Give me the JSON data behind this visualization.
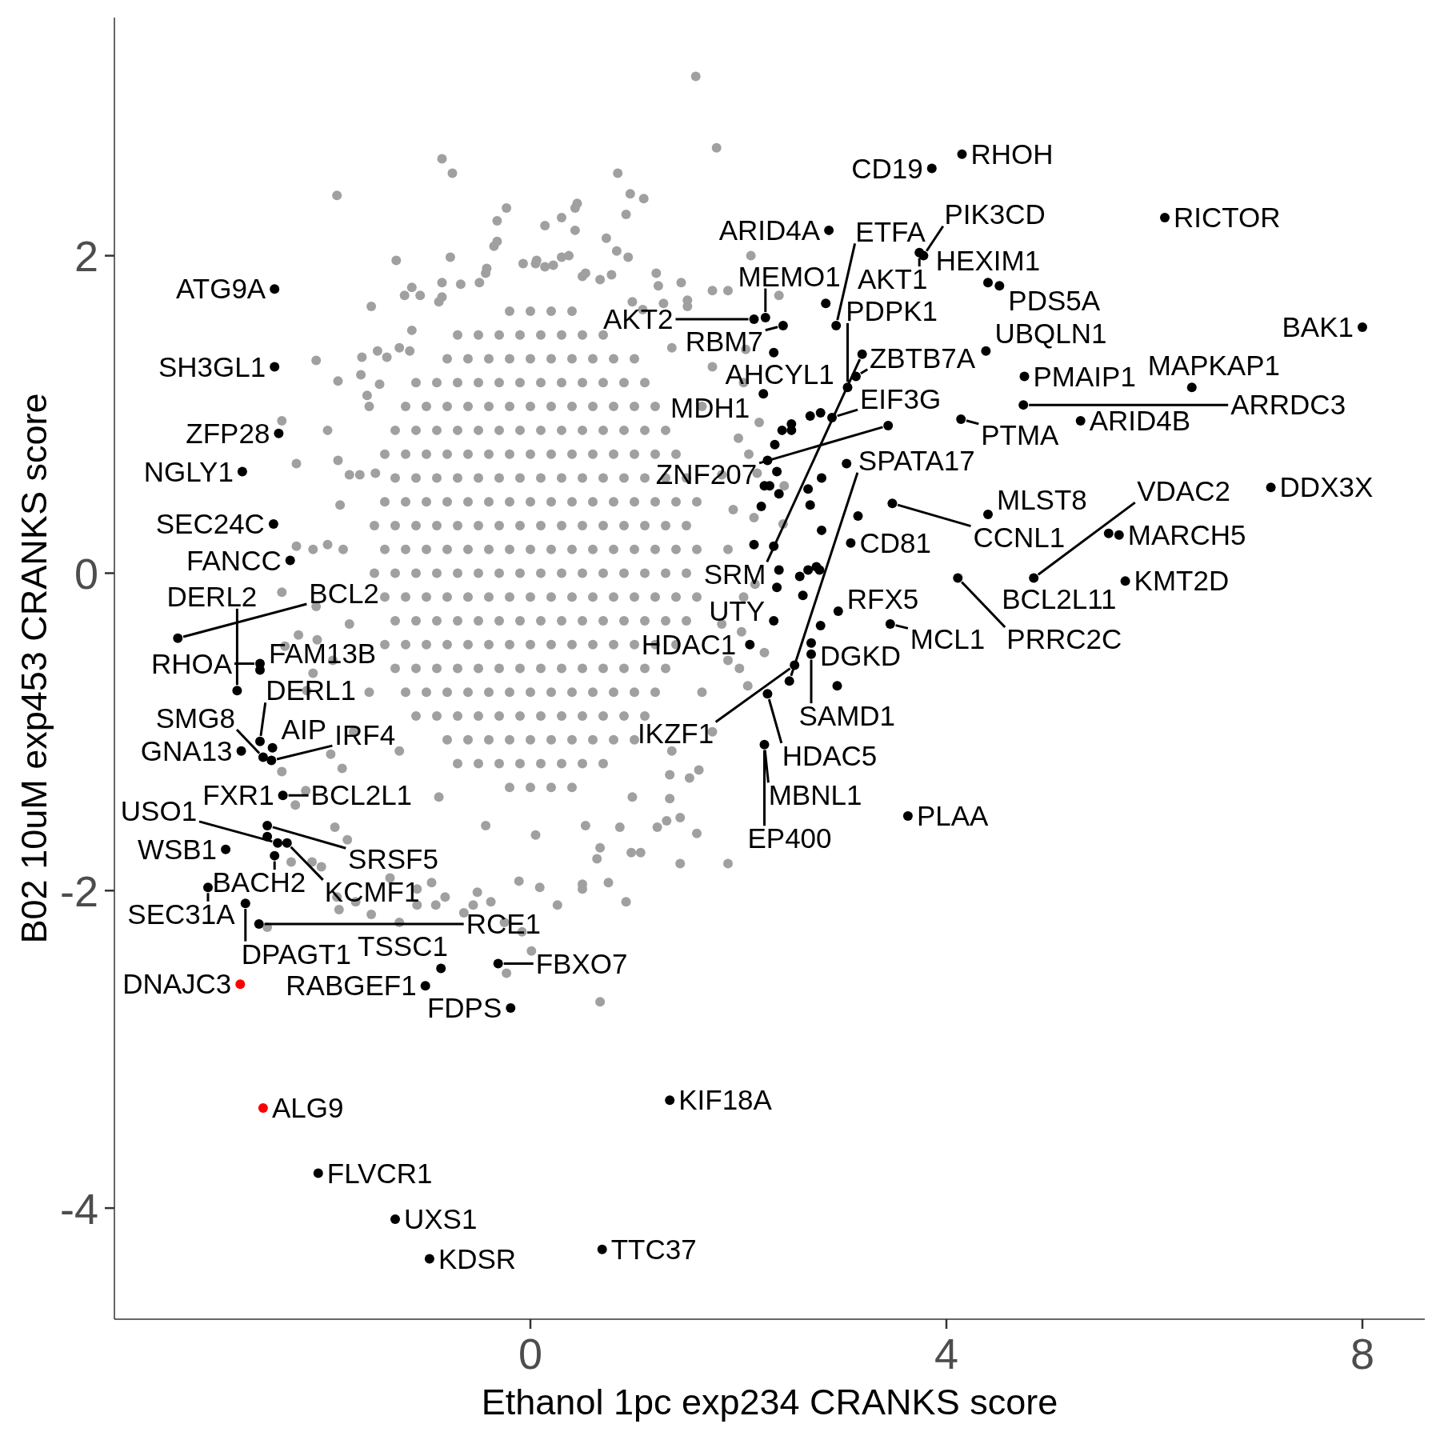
{
  "chart_data": {
    "type": "scatter",
    "xlabel": "Ethanol 1pc exp234 CRANKS score",
    "ylabel": "B02 10uM exp453 CRANKS score",
    "xlim": [
      -4,
      8.6
    ],
    "ylim": [
      -4.7,
      3.5
    ],
    "xticks": [
      0,
      4,
      8
    ],
    "yticks": [
      -4,
      -2,
      0,
      2
    ],
    "marker": "circle",
    "series": [
      {
        "color": "#a0a0a0",
        "x": [
          -0.2,
          0,
          0.2,
          0.4,
          -0.7,
          -0.5,
          -0.3,
          -0.1,
          0.1,
          0.3,
          0.5,
          0.7,
          -0.8,
          -0.6,
          -0.4,
          -0.2,
          0,
          0.2,
          0.4,
          0.6,
          0.8,
          1,
          -1.1,
          -0.9,
          -0.7,
          -0.5,
          -0.3,
          -0.1,
          0.1,
          0.3,
          0.5,
          0.7,
          0.9,
          1.1,
          -1.2,
          -1,
          -0.8,
          -0.6,
          -0.4,
          -0.2,
          0,
          0.2,
          0.4,
          0.6,
          0.8,
          1,
          1.2,
          -1.3,
          -1.1,
          -0.9,
          -0.7,
          -0.5,
          -0.3,
          -0.1,
          0.1,
          0.3,
          0.5,
          0.7,
          0.9,
          1.1,
          1.3,
          -1.4,
          -1.2,
          -1,
          -0.8,
          -0.6,
          -0.4,
          -0.2,
          0,
          0.2,
          0.4,
          0.6,
          0.8,
          1,
          1.2,
          1.4,
          -1.3,
          -1.1,
          -0.9,
          -0.7,
          -0.5,
          -0.3,
          -0.1,
          0.1,
          0.3,
          0.5,
          0.7,
          0.9,
          1.1,
          1.3,
          1.5,
          -1.4,
          -1.2,
          -1,
          -0.8,
          -0.6,
          -0.4,
          -0.2,
          0,
          0.2,
          0.4,
          0.6,
          0.8,
          1,
          1.2,
          1.4,
          1.6,
          -1.5,
          -1.3,
          -1.1,
          -0.9,
          -0.7,
          -0.5,
          -0.3,
          -0.1,
          0.1,
          0.3,
          0.5,
          0.7,
          0.9,
          1.1,
          1.3,
          1.5,
          -1.4,
          -1.2,
          -1,
          -0.8,
          -0.6,
          -0.4,
          -0.2,
          0,
          0.2,
          0.4,
          0.6,
          0.8,
          1,
          1.2,
          1.4,
          1.6,
          -1.5,
          -1.3,
          -1.1,
          -0.9,
          -0.7,
          -0.5,
          -0.3,
          -0.1,
          0.1,
          0.3,
          0.5,
          0.7,
          0.9,
          1.1,
          1.3,
          1.5,
          -1.4,
          -1.2,
          -1,
          -0.8,
          -0.6,
          -0.4,
          -0.2,
          0,
          0.2,
          0.4,
          0.6,
          0.8,
          1,
          1.2,
          1.4,
          1.6,
          -1.3,
          -1.1,
          -0.9,
          -0.7,
          -0.5,
          -0.3,
          -0.1,
          0.1,
          0.3,
          0.5,
          0.7,
          0.9,
          1.1,
          1.3,
          1.5,
          -1.4,
          -1.2,
          -1,
          -0.8,
          -0.6,
          -0.4,
          -0.2,
          0,
          0.2,
          0.4,
          0.6,
          0.8,
          1,
          1.2,
          1.4,
          -1.3,
          -1.1,
          -0.9,
          -0.7,
          -0.5,
          -0.3,
          -0.1,
          0.1,
          0.3,
          0.5,
          0.7,
          0.9,
          1.1,
          1.3,
          -1.2,
          -1,
          -0.8,
          -0.6,
          -0.4,
          -0.2,
          0,
          0.2,
          0.4,
          0.6,
          0.8,
          1,
          1.2,
          -1.1,
          -0.9,
          -0.7,
          -0.5,
          -0.3,
          -0.1,
          0.1,
          0.3,
          0.5,
          0.7,
          0.9,
          1.1,
          -0.8,
          -0.6,
          -0.4,
          -0.2,
          0,
          0.2,
          0.4,
          0.6,
          0.8,
          1,
          -0.7,
          -0.5,
          -0.3,
          -0.1,
          0.1,
          0.3,
          0.5,
          0.7,
          -0.2,
          0,
          0.2,
          0.4,
          1.59,
          1.79,
          -0.85,
          -0.75,
          -1.86,
          0.84,
          0.96,
          1.09,
          0.92,
          0.73,
          0.83,
          0.94,
          -0.23,
          -0.32,
          0.45,
          0.43,
          0.3,
          0.14,
          0.43,
          -0.32,
          -0.35,
          -0.77,
          -1.29,
          -0.42,
          -0.07,
          0.06,
          0.14,
          0.22,
          0.3,
          0.37,
          1.21,
          1.23,
          1.45,
          1.75,
          1.9,
          2.12,
          2.39,
          0.67,
          0.78,
          0.5,
          -0.67,
          -0.49,
          -0.85,
          -0.85,
          -1.14,
          -1.21,
          -1.06,
          -1.53,
          -2.06,
          -1.85,
          -1.62,
          -1.63,
          -2.25,
          -1.85,
          -1.14,
          -1.47,
          -1.38,
          -1.16,
          1.28,
          1.51,
          1.51,
          1.08,
          2.07,
          2.18,
          2.44,
          -1.45,
          -1.57,
          -2.39,
          -1.64,
          -1.49,
          -1.83,
          -2.25,
          -2.09,
          -1.95,
          -2.39,
          -2.06,
          -2.36,
          -2.23,
          -2.05,
          -2.09,
          -2.15,
          -2.39,
          -2.16,
          -1.92,
          -1.81,
          -2.26,
          -1.88,
          -1.76,
          -2.3,
          -2.1,
          -2.01,
          -1.86,
          -1.68,
          -1.84,
          -2.53,
          -1.53,
          -1.26,
          -1.09,
          -0.91,
          -0.64,
          -0.55,
          -0.25,
          -0.08,
          0.01,
          -0.23,
          0.67,
          0.26,
          0.5,
          0.75,
          0.92,
          1.44,
          1.9,
          1.6,
          1.06,
          0.86,
          1.22,
          0.09,
          -0.11,
          -0.51,
          -0.38,
          -0.82,
          -0.95,
          -1.35,
          -1.09,
          0.5,
          1.31,
          1.44,
          0.97,
          1.75,
          2.03,
          2.43,
          2.25,
          2.01,
          2.09,
          1.53,
          1.34,
          0.64,
          0.67,
          1.62,
          1.34,
          2.16,
          1.9,
          1.84,
          1.65,
          1.36,
          0.98,
          0.53,
          0.05,
          -0.43,
          -0.88,
          -1.26,
          -1.55,
          -1.74,
          -1.8,
          -1.74,
          -1.55,
          -1.26,
          -0.88,
          -0.43,
          0.05,
          0.53,
          0.98,
          1.36,
          1.65,
          1.84,
          2,
          1.95,
          2.05,
          1.9,
          1.75,
          -1.95,
          -1.9,
          -1.7,
          2.2,
          2.1,
          2.15,
          2.05
        ],
        "values": [
          1.65,
          1.65,
          1.65,
          1.65,
          1.5,
          1.5,
          1.5,
          1.5,
          1.5,
          1.5,
          1.5,
          1.5,
          1.35,
          1.35,
          1.35,
          1.35,
          1.35,
          1.35,
          1.35,
          1.35,
          1.35,
          1.35,
          1.2,
          1.2,
          1.2,
          1.2,
          1.2,
          1.2,
          1.2,
          1.2,
          1.2,
          1.2,
          1.2,
          1.2,
          1.05,
          1.05,
          1.05,
          1.05,
          1.05,
          1.05,
          1.05,
          1.05,
          1.05,
          1.05,
          1.05,
          1.05,
          1.05,
          0.9,
          0.9,
          0.9,
          0.9,
          0.9,
          0.9,
          0.9,
          0.9,
          0.9,
          0.9,
          0.9,
          0.9,
          0.9,
          0.9,
          0.75,
          0.75,
          0.75,
          0.75,
          0.75,
          0.75,
          0.75,
          0.75,
          0.75,
          0.75,
          0.75,
          0.75,
          0.75,
          0.75,
          0.75,
          0.6,
          0.6,
          0.6,
          0.6,
          0.6,
          0.6,
          0.6,
          0.6,
          0.6,
          0.6,
          0.6,
          0.6,
          0.6,
          0.6,
          0.6,
          0.45,
          0.45,
          0.45,
          0.45,
          0.45,
          0.45,
          0.45,
          0.45,
          0.45,
          0.45,
          0.45,
          0.45,
          0.45,
          0.45,
          0.45,
          0.45,
          0.3,
          0.3,
          0.3,
          0.3,
          0.3,
          0.3,
          0.3,
          0.3,
          0.3,
          0.3,
          0.3,
          0.3,
          0.3,
          0.3,
          0.3,
          0.3,
          0.15,
          0.15,
          0.15,
          0.15,
          0.15,
          0.15,
          0.15,
          0.15,
          0.15,
          0.15,
          0.15,
          0.15,
          0.15,
          0.15,
          0.15,
          0.15,
          0,
          0,
          0,
          0,
          0,
          0,
          0,
          0,
          0,
          0,
          0,
          0,
          0,
          0,
          0,
          0,
          -0.15,
          -0.15,
          -0.15,
          -0.15,
          -0.15,
          -0.15,
          -0.15,
          -0.15,
          -0.15,
          -0.15,
          -0.15,
          -0.15,
          -0.15,
          -0.15,
          -0.15,
          -0.15,
          -0.3,
          -0.3,
          -0.3,
          -0.3,
          -0.3,
          -0.3,
          -0.3,
          -0.3,
          -0.3,
          -0.3,
          -0.3,
          -0.3,
          -0.3,
          -0.3,
          -0.3,
          -0.45,
          -0.45,
          -0.45,
          -0.45,
          -0.45,
          -0.45,
          -0.45,
          -0.45,
          -0.45,
          -0.45,
          -0.45,
          -0.45,
          -0.45,
          -0.45,
          -0.45,
          -0.6,
          -0.6,
          -0.6,
          -0.6,
          -0.6,
          -0.6,
          -0.6,
          -0.6,
          -0.6,
          -0.6,
          -0.6,
          -0.6,
          -0.6,
          -0.6,
          -0.75,
          -0.75,
          -0.75,
          -0.75,
          -0.75,
          -0.75,
          -0.75,
          -0.75,
          -0.75,
          -0.75,
          -0.75,
          -0.75,
          -0.75,
          -0.9,
          -0.9,
          -0.9,
          -0.9,
          -0.9,
          -0.9,
          -0.9,
          -0.9,
          -0.9,
          -0.9,
          -0.9,
          -0.9,
          -1.05,
          -1.05,
          -1.05,
          -1.05,
          -1.05,
          -1.05,
          -1.05,
          -1.05,
          -1.05,
          -1.05,
          -1.2,
          -1.2,
          -1.2,
          -1.2,
          -1.2,
          -1.2,
          -1.2,
          -1.2,
          -1.35,
          -1.35,
          -1.35,
          -1.35,
          3.13,
          2.68,
          2.61,
          2.52,
          2.38,
          2.52,
          2.39,
          2.36,
          2.26,
          2.11,
          2.03,
          1.99,
          2.3,
          2.22,
          2.33,
          2.3,
          2.24,
          2.19,
          2.16,
          2.09,
          2.06,
          1.99,
          1.97,
          1.92,
          1.95,
          1.97,
          1.93,
          1.94,
          1.99,
          2,
          1.89,
          1.81,
          1.83,
          1.78,
          1.78,
          2,
          1.75,
          1.85,
          1.88,
          1.87,
          1.82,
          1.83,
          1.83,
          1.74,
          1.8,
          1.75,
          1.75,
          1.68,
          1.34,
          1.21,
          1.36,
          1.25,
          0.69,
          0.71,
          1.53,
          1.4,
          1.36,
          1.4,
          1.7,
          1.72,
          1.68,
          1.66,
          1.41,
          0.63,
          0.55,
          1.19,
          1.12,
          0.96,
          0.62,
          0.63,
          0.43,
          0.17,
          0.15,
          0.18,
          -0.12,
          -0.21,
          -0.46,
          -0.39,
          -0.42,
          -0.63,
          -0.74,
          -1.25,
          -1.37,
          -1.14,
          -1.23,
          -1.46,
          -1.6,
          -1.68,
          -1.82,
          -1.82,
          -1.85,
          -2.04,
          -2.07,
          -2.12,
          -2.23,
          -2.15,
          -2.2,
          -2.09,
          -2.09,
          -2.14,
          -2.09,
          -2.2,
          -2.26,
          -2.38,
          -2.52,
          -2.7,
          -2.09,
          -1.96,
          -1.95,
          -2.07,
          -1.83,
          -1.83,
          -1.64,
          -1.76,
          -1.6,
          -1.6,
          -1.98,
          -1.94,
          -2.01,
          -2.07,
          -2.04,
          -1.95,
          -1.92,
          -1.99,
          -1.99,
          -1.56,
          -1.54,
          -1.76,
          -1,
          -0.37,
          0.31,
          -0.5,
          -0.6,
          -0.71,
          -1.29,
          -1.27,
          -1.8,
          -1.73,
          -1.24,
          -1.42,
          -0.07,
          0.15,
          0.62,
          1.05,
          1.42,
          1.71,
          1.89,
          1.95,
          1.89,
          1.71,
          1.42,
          1.05,
          0.62,
          0.15,
          -0.32,
          -0.75,
          -1.12,
          -1.41,
          -1.59,
          -1.65,
          -1.59,
          -1.41,
          -1.12,
          -0.75,
          -0.32,
          0.85,
          0.4,
          -0.15,
          -0.55,
          1.3,
          0.9,
          -0.55,
          -1,
          0.95,
          0.75,
          0.35,
          1.2
        ]
      },
      {
        "color": "#000000",
        "x": [
          4.15,
          3.86,
          2.87,
          3.74,
          3.78,
          6.1,
          4.4,
          4.51,
          8,
          2.26,
          2.15,
          2.43,
          2.94,
          2.34,
          3.19,
          4.38,
          3.13,
          3.05,
          2.24,
          4.75,
          6.36,
          4.74,
          4.14,
          5.29,
          2.9,
          3.44,
          3.48,
          7.12,
          5.66,
          4.4,
          3.08,
          5.72,
          4.11,
          4.84,
          2.96,
          3.46,
          2.34,
          2.7,
          2.11,
          2.7,
          2.54,
          2.49,
          2.28,
          2.25,
          3.63,
          2.84,
          2.69,
          2.79,
          2.51,
          2.51,
          2.42,
          2.35,
          2.28,
          2.37,
          3.04,
          2.8,
          2.25,
          2.3,
          2.39,
          2.67,
          2.69,
          2.22,
          3.15,
          2.8,
          2.15,
          2.34,
          5.56,
          2.39,
          2.37,
          2.67,
          2.75,
          2.78,
          2.59,
          2.62,
          2.79,
          2.95,
          -2.46,
          -2.46,
          -2.42,
          -2.77,
          -2.47,
          -2.31,
          -3.39,
          -2.6,
          -2.6,
          -2.82,
          -2.6,
          -2.78,
          -2.57,
          -2.48,
          -2.49,
          -2.38,
          -2.53,
          -2.53,
          -2.43,
          -2.34,
          -2.46,
          -2.93,
          -3.1,
          -2.74,
          -2.61,
          -0.86,
          -1.01,
          -0.31,
          -0.19,
          1.34,
          -2.04,
          -1.3,
          -0.97,
          0.69
        ],
        "values": [
          2.64,
          2.55,
          2.16,
          2.02,
          2,
          2.24,
          1.83,
          1.81,
          1.55,
          1.61,
          1.6,
          1.56,
          1.56,
          1.39,
          1.38,
          1.4,
          1.24,
          1.17,
          1.13,
          1.24,
          1.17,
          1.06,
          0.97,
          0.96,
          0.98,
          0.93,
          0.44,
          0.54,
          0.24,
          0.37,
          0.19,
          -0.05,
          -0.03,
          -0.03,
          -0.24,
          -0.32,
          -0.3,
          -0.44,
          -0.45,
          -0.51,
          -0.58,
          -0.68,
          -0.76,
          -1.08,
          -1.53,
          1.7,
          0.99,
          1.01,
          0.94,
          0.9,
          0.9,
          0.81,
          0.71,
          0.64,
          0.69,
          0.6,
          0.55,
          0.55,
          0.5,
          0.53,
          0.43,
          0.42,
          0.36,
          0.27,
          0.18,
          0.17,
          0.25,
          0.02,
          -0.09,
          0.02,
          0.04,
          0.02,
          -0.02,
          -0.14,
          -0.33,
          -0.71,
          1.79,
          1.3,
          0.88,
          0.64,
          0.31,
          0.08,
          -0.41,
          -0.57,
          -0.61,
          -0.74,
          -1.06,
          -1.12,
          -1.16,
          -1.1,
          -1.18,
          -1.4,
          -1.59,
          -1.66,
          -1.7,
          -1.7,
          -1.78,
          -1.74,
          -1.98,
          -2.08,
          -2.21,
          -2.49,
          -2.6,
          -2.46,
          -2.74,
          -3.32,
          -3.78,
          -4.07,
          -4.32,
          -4.26
        ]
      },
      {
        "color": "#ff0000",
        "x": [
          -2.79,
          -2.57
        ],
        "values": [
          -2.59,
          -3.37
        ]
      }
    ],
    "annotations": [
      {
        "text": "RHOH",
        "x": 4.15,
        "y": 2.64
      },
      {
        "text": "CD19",
        "x": 3.86,
        "y": 2.55
      },
      {
        "text": "ARID4A",
        "x": 2.87,
        "y": 2.16
      },
      {
        "text": "AKT1",
        "x": 3.74,
        "y": 2.02
      },
      {
        "text": "PIK3CD",
        "x": 3.78,
        "y": 2
      },
      {
        "text": "RICTOR",
        "x": 6.1,
        "y": 2.24
      },
      {
        "text": "HEXIM1",
        "x": 4.4,
        "y": 1.83
      },
      {
        "text": "PDS5A",
        "x": 4.51,
        "y": 1.81
      },
      {
        "text": "BAK1",
        "x": 8,
        "y": 1.55
      },
      {
        "text": "MEMO1",
        "x": 2.26,
        "y": 1.61
      },
      {
        "text": "AKT2",
        "x": 2.15,
        "y": 1.6
      },
      {
        "text": "RBM7",
        "x": 2.43,
        "y": 1.56
      },
      {
        "text": "ETFA",
        "x": 2.94,
        "y": 1.56
      },
      {
        "text": "AHCYL1",
        "x": 2.34,
        "y": 1.39
      },
      {
        "text": "SRM",
        "x": 3.19,
        "y": 1.38
      },
      {
        "text": "UBQLN1",
        "x": 4.38,
        "y": 1.4
      },
      {
        "text": "ZBTB7A",
        "x": 3.13,
        "y": 1.24
      },
      {
        "text": "PDPK1",
        "x": 3.05,
        "y": 1.17
      },
      {
        "text": "MDH1",
        "x": 2.24,
        "y": 1.13
      },
      {
        "text": "PMAIP1",
        "x": 4.75,
        "y": 1.24
      },
      {
        "text": "MAPKAP1",
        "x": 6.36,
        "y": 1.17
      },
      {
        "text": "ARRDC3",
        "x": 4.74,
        "y": 1.06
      },
      {
        "text": "PTMA",
        "x": 4.14,
        "y": 0.97
      },
      {
        "text": "ARID4B",
        "x": 5.29,
        "y": 0.96
      },
      {
        "text": "EIF3G",
        "x": 2.9,
        "y": 0.98
      },
      {
        "text": "ZNF207",
        "x": 3.44,
        "y": 0.93
      },
      {
        "text": "CCNL1",
        "x": 3.48,
        "y": 0.44
      },
      {
        "text": "DDX3X",
        "x": 7.12,
        "y": 0.54
      },
      {
        "text": "MARCH5",
        "x": 5.66,
        "y": 0.24
      },
      {
        "text": "MLST8",
        "x": 4.4,
        "y": 0.37
      },
      {
        "text": "CD81",
        "x": 3.08,
        "y": 0.19
      },
      {
        "text": "KMT2D",
        "x": 5.72,
        "y": -0.05
      },
      {
        "text": "BCL2L11",
        "x": 5.72,
        "y": -0.05
      },
      {
        "text": "PRRC2C",
        "x": 4.11,
        "y": -0.03
      },
      {
        "text": "VDAC2",
        "x": 4.84,
        "y": -0.03
      },
      {
        "text": "RFX5",
        "x": 2.96,
        "y": -0.24
      },
      {
        "text": "MCL1",
        "x": 3.46,
        "y": -0.32
      },
      {
        "text": "UTY",
        "x": 2.34,
        "y": -0.3
      },
      {
        "text": "DGKD",
        "x": 2.7,
        "y": -0.44
      },
      {
        "text": "HDAC1",
        "x": 2.11,
        "y": -0.45
      },
      {
        "text": "SAMD1",
        "x": 2.7,
        "y": -0.51
      },
      {
        "text": "IKZF1",
        "x": 2.54,
        "y": -0.58
      },
      {
        "text": "SPATA17",
        "x": 2.49,
        "y": -0.68
      },
      {
        "text": "HDAC5",
        "x": 2.28,
        "y": -0.76
      },
      {
        "text": "MBNL1",
        "x": 2.25,
        "y": -1.08
      },
      {
        "text": "EP400",
        "x": 2.25,
        "y": -1.08
      },
      {
        "text": "PLAA",
        "x": 3.63,
        "y": -1.53
      },
      {
        "text": "ATG9A",
        "x": -2.46,
        "y": 1.79
      },
      {
        "text": "SH3GL1",
        "x": -2.46,
        "y": 1.3
      },
      {
        "text": "ZFP28",
        "x": -2.42,
        "y": 0.88
      },
      {
        "text": "NGLY1",
        "x": -2.77,
        "y": 0.64
      },
      {
        "text": "SEC24C",
        "x": -2.47,
        "y": 0.31
      },
      {
        "text": "FANCC",
        "x": -2.31,
        "y": 0.08
      },
      {
        "text": "BCL2",
        "x": -3.39,
        "y": -0.41
      },
      {
        "text": "RHOA",
        "x": -2.6,
        "y": -0.57
      },
      {
        "text": "FAM13B",
        "x": -2.6,
        "y": -0.61
      },
      {
        "text": "DERL2",
        "x": -2.82,
        "y": -0.74
      },
      {
        "text": "DERL1",
        "x": -2.6,
        "y": -1.06
      },
      {
        "text": "GNA13",
        "x": -2.78,
        "y": -1.12
      },
      {
        "text": "SMG8",
        "x": -2.57,
        "y": -1.16
      },
      {
        "text": "AIP",
        "x": -2.48,
        "y": -1.1
      },
      {
        "text": "IRF4",
        "x": -2.49,
        "y": -1.18
      },
      {
        "text": "FXR1",
        "x": -2.38,
        "y": -1.4
      },
      {
        "text": "BCL2L1",
        "x": -2.38,
        "y": -1.4
      },
      {
        "text": "SRSF5",
        "x": -2.53,
        "y": -1.59
      },
      {
        "text": "USO1",
        "x": -2.43,
        "y": -1.7
      },
      {
        "text": "KCMF1",
        "x": -2.34,
        "y": -1.7
      },
      {
        "text": "BACH2",
        "x": -2.46,
        "y": -1.78
      },
      {
        "text": "WSB1",
        "x": -2.93,
        "y": -1.74
      },
      {
        "text": "SEC31A",
        "x": -3.1,
        "y": -1.98
      },
      {
        "text": "DPAGT1",
        "x": -2.74,
        "y": -2.08
      },
      {
        "text": "RCE1",
        "x": -2.61,
        "y": -2.21
      },
      {
        "text": "DNAJC3",
        "x": -2.79,
        "y": -2.59
      },
      {
        "text": "TSSC1",
        "x": -0.86,
        "y": -2.49
      },
      {
        "text": "RABGEF1",
        "x": -1.01,
        "y": -2.6
      },
      {
        "text": "FBXO7",
        "x": -0.31,
        "y": -2.46
      },
      {
        "text": "FDPS",
        "x": -0.19,
        "y": -2.74
      },
      {
        "text": "ALG9",
        "x": -2.57,
        "y": -3.37
      },
      {
        "text": "KIF18A",
        "x": 1.34,
        "y": -3.32
      },
      {
        "text": "FLVCR1",
        "x": -2.04,
        "y": -3.78
      },
      {
        "text": "UXS1",
        "x": -1.3,
        "y": -4.07
      },
      {
        "text": "KDSR",
        "x": -0.97,
        "y": -4.32
      },
      {
        "text": "TTC37",
        "x": 0.69,
        "y": -4.26
      }
    ]
  }
}
